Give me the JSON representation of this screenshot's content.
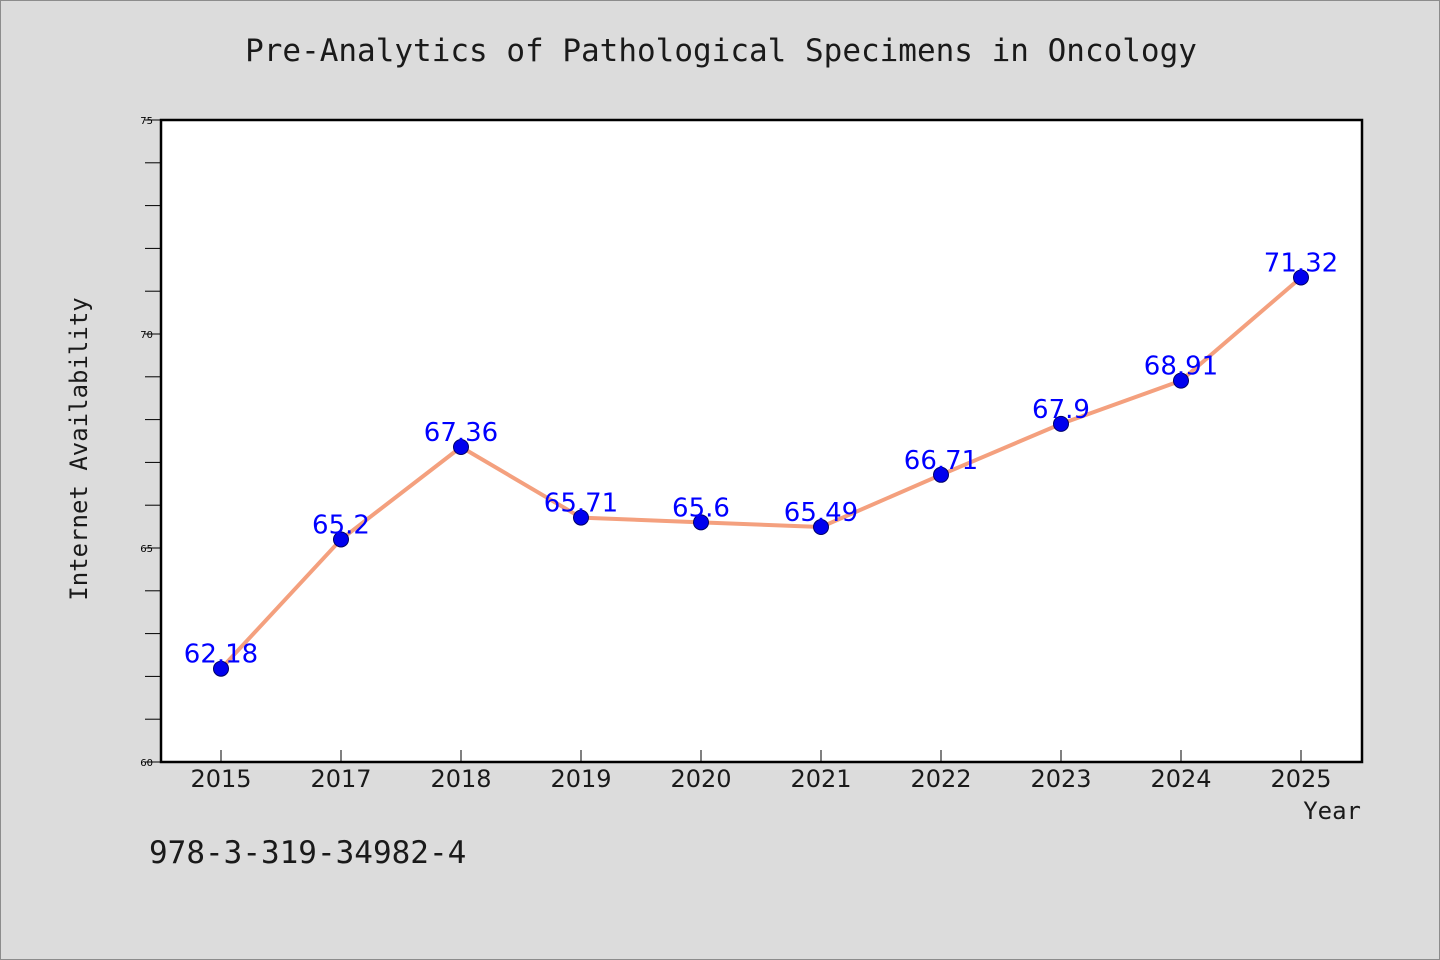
{
  "chart_data": {
    "type": "line",
    "title": "Pre-Analytics of Pathological Specimens in Oncology",
    "xlabel": "Year",
    "ylabel": "Internet Availability",
    "categories": [
      "2015",
      "2017",
      "2018",
      "2019",
      "2020",
      "2021",
      "2022",
      "2023",
      "2024",
      "2025"
    ],
    "series": [
      {
        "values": [
          62.18,
          65.2,
          67.36,
          65.71,
          65.6,
          65.49,
          66.71,
          67.9,
          68.91,
          71.32
        ],
        "labels": [
          "62.18",
          "65.2",
          "67.36",
          "65.71",
          "65.6",
          "65.49",
          "66.71",
          "67.9",
          "68.91",
          "71.32"
        ]
      }
    ],
    "ylim": [
      60,
      75
    ],
    "yticks": [
      "60",
      "65",
      "70",
      "75"
    ],
    "y_minor_step": 1,
    "grid": false,
    "legend": "none",
    "colors": {
      "line": "#f4a07e",
      "marker": "#0000ee",
      "label": "#0000ff",
      "axis": "#000000",
      "plot_background": "#ffffff",
      "page_background": "#dcdcdc"
    }
  },
  "footer": {
    "code": "978-3-319-34982-4"
  }
}
